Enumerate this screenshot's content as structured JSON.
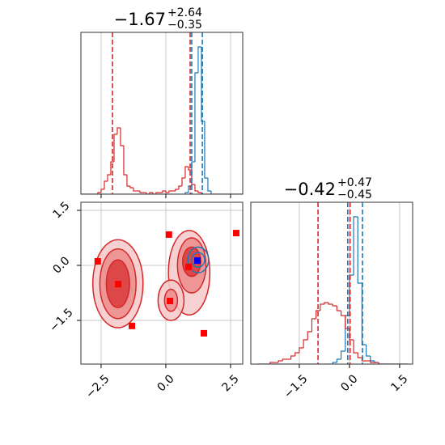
{
  "chart_data": [
    {
      "type": "histogram",
      "title": {
        "value": "−1.67",
        "upper": "+2.64",
        "lower": "−0.35"
      },
      "bins": [
        -3.25,
        -3.125,
        -3,
        -2.875,
        -2.75,
        -2.625,
        -2.5,
        -2.375,
        -2.25,
        -2.125,
        -2,
        -1.875,
        -1.75,
        -1.625,
        -1.5,
        -1.375,
        -1.25,
        -1.125,
        -1,
        -0.875,
        -0.75,
        -0.625,
        -0.5,
        -0.375,
        -0.25,
        -0.125,
        0,
        0.125,
        0.25,
        0.375,
        0.5,
        0.625,
        0.75,
        0.875,
        1,
        1.125,
        1.25,
        1.375,
        1.5,
        1.625,
        1.75,
        1.875,
        2,
        2.125,
        2.25,
        2.375,
        2.5,
        2.625,
        2.75,
        2.875,
        3
      ],
      "series": [
        {
          "color": "#1f77b4",
          "values": [
            0,
            0,
            0,
            0,
            0,
            0,
            0,
            0,
            0,
            0,
            0,
            0,
            0,
            0,
            0,
            0,
            0,
            0,
            0,
            0,
            0,
            0,
            0,
            0,
            0,
            0,
            0,
            0,
            0,
            0,
            0,
            0,
            0.01,
            0.05,
            0.2,
            0.75,
            0.91,
            0.45,
            0.1,
            0.02,
            0,
            0,
            0,
            0,
            0,
            0,
            0,
            0,
            0,
            0
          ]
        },
        {
          "color": "#d62728",
          "values": [
            0,
            0,
            0,
            0,
            0,
            0.01,
            0.03,
            0.08,
            0.12,
            0.2,
            0.37,
            0.41,
            0.3,
            0.12,
            0.05,
            0.04,
            0.02,
            0.02,
            0.01,
            0.01,
            0,
            0.01,
            0,
            0.01,
            0.01,
            0.02,
            0.01,
            0.02,
            0.02,
            0.03,
            0.05,
            0.1,
            0.17,
            0.15,
            0.06,
            0.02,
            0.01,
            0,
            0,
            0,
            0,
            0,
            0,
            0,
            0,
            0,
            0,
            0,
            0,
            0
          ]
        }
      ],
      "quantiles": [
        {
          "value": -2.06,
          "color": "#d62728"
        },
        {
          "value": 0.94,
          "color": "#d62728"
        },
        {
          "value": 1.0,
          "color": "#1f77b4"
        },
        {
          "value": 1.41,
          "color": "#1f77b4"
        }
      ],
      "xlim": [
        -3.28,
        2.97
      ],
      "ylim": [
        0,
        1
      ],
      "xticks": [
        -2.5,
        0,
        2.5
      ],
      "grid": true
    },
    {
      "type": "contour",
      "xlim": [
        -3.28,
        2.97
      ],
      "ylim": [
        -2.69,
        1.72
      ],
      "xticks": [
        {
          "value": -2.5,
          "label": "−2.5"
        },
        {
          "value": 0,
          "label": "0.0"
        },
        2.5
      ],
      "yticks": [
        {
          "value": -1.5,
          "label": "−1.5"
        },
        {
          "value": 0,
          "label": "0.0"
        },
        1.5
      ],
      "grid": true,
      "contours": [
        {
          "cx": -1.85,
          "cy": -0.5,
          "rx": 0.97,
          "ry": 1.2,
          "level": 0,
          "color": "#d62728"
        },
        {
          "cx": 0.9,
          "cy": -0.2,
          "rx": 0.8,
          "ry": 1.15,
          "level": 0,
          "color": "#d62728"
        },
        {
          "cx": 0.2,
          "cy": -0.95,
          "rx": 0.5,
          "ry": 0.55,
          "level": 0,
          "color": "#d62728"
        },
        {
          "cx": -1.85,
          "cy": -0.5,
          "rx": 0.7,
          "ry": 0.95,
          "level": 1,
          "color": "#d62728"
        },
        {
          "cx": 1.0,
          "cy": 0.0,
          "rx": 0.55,
          "ry": 0.75,
          "level": 1,
          "color": "#d62728"
        },
        {
          "cx": 0.2,
          "cy": -0.95,
          "rx": 0.25,
          "ry": 0.3,
          "level": 1,
          "color": "#d62728"
        },
        {
          "cx": -1.85,
          "cy": -0.5,
          "rx": 0.45,
          "ry": 0.65,
          "level": 2,
          "color": "#d62728"
        },
        {
          "cx": 1.0,
          "cy": 0.1,
          "rx": 0.35,
          "ry": 0.4,
          "level": 2,
          "color": "#d62728"
        },
        {
          "cx": 1.25,
          "cy": 0.15,
          "rx": 0.4,
          "ry": 0.35,
          "level": 0,
          "color": "#1f77b4"
        },
        {
          "cx": 1.25,
          "cy": 0.15,
          "rx": 0.25,
          "ry": 0.2,
          "level": 1,
          "color": "#1f77b4"
        }
      ],
      "series": [
        {
          "color": "#ff0000",
          "x": [
            -2.63,
            -1.84,
            -1.31,
            0.12,
            0.16,
            1.47,
            2.72,
            0.88
          ],
          "y": [
            0.11,
            -0.51,
            -1.65,
            0.84,
            -0.97,
            -1.85,
            0.88,
            -0.04
          ]
        },
        {
          "color": "#0000ff",
          "x": [
            1.22
          ],
          "y": [
            0.13
          ]
        }
      ]
    },
    {
      "type": "histogram",
      "title": {
        "value": "−0.42",
        "upper": "+0.47",
        "lower": "−0.45"
      },
      "bins": [
        -2.75,
        -2.625,
        -2.5,
        -2.375,
        -2.25,
        -2.125,
        -2,
        -1.875,
        -1.75,
        -1.625,
        -1.5,
        -1.375,
        -1.25,
        -1.125,
        -1,
        -0.875,
        -0.75,
        -0.625,
        -0.5,
        -0.375,
        -0.25,
        -0.125,
        0,
        0.125,
        0.25,
        0.375,
        0.5,
        0.625,
        0.75,
        0.875,
        1,
        1.125,
        1.25,
        1.375,
        1.5,
        1.625,
        1.75
      ],
      "series": [
        {
          "color": "#1f77b4",
          "values": [
            0,
            0,
            0,
            0,
            0,
            0,
            0,
            0,
            0,
            0,
            0,
            0,
            0,
            0,
            0,
            0,
            0,
            0,
            0.01,
            0.03,
            0.08,
            0.3,
            0.55,
            0.91,
            0.5,
            0.12,
            0.05,
            0.02,
            0.01,
            0,
            0,
            0,
            0,
            0,
            0,
            0
          ]
        },
        {
          "color": "#d62728",
          "values": [
            0,
            0,
            0,
            0.01,
            0.01,
            0.02,
            0.03,
            0.03,
            0.05,
            0.07,
            0.1,
            0.15,
            0.2,
            0.28,
            0.33,
            0.37,
            0.38,
            0.37,
            0.36,
            0.33,
            0.3,
            0.22,
            0.15,
            0.07,
            0.04,
            0.02,
            0.02,
            0.01,
            0.01,
            0,
            0,
            0,
            0,
            0,
            0,
            0
          ]
        }
      ],
      "quantiles": [
        {
          "value": -0.94,
          "color": "#d62728"
        },
        {
          "value": -0.05,
          "color": "#1f77b4"
        },
        {
          "value": 0.02,
          "color": "#d62728"
        },
        {
          "value": 0.39,
          "color": "#1f77b4"
        }
      ],
      "xlim": [
        -2.95,
        1.89
      ],
      "ylim": [
        0,
        1
      ],
      "xticks": [
        {
          "value": -1.5,
          "label": "−1.5"
        },
        {
          "value": 0,
          "label": "0.0"
        },
        1.5
      ],
      "grid": true
    }
  ]
}
